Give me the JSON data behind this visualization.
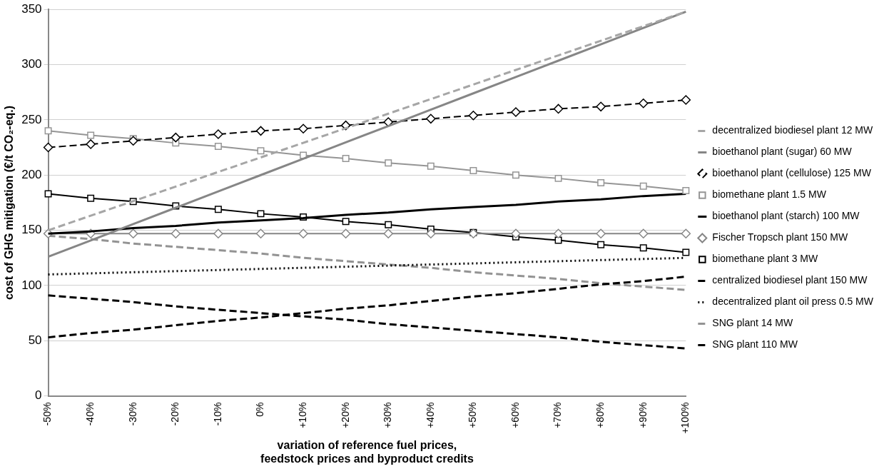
{
  "chart_data": {
    "type": "line",
    "xlabel": "variation of reference fuel prices,\nfeedstock prices and byproduct credits",
    "ylabel": "cost of GHG mitigation (€/t CO₂-eq.)",
    "categories": [
      "-50%",
      "-40%",
      "-30%",
      "-20%",
      "-10%",
      "0%",
      "+10%",
      "+20%",
      "+30%",
      "+40%",
      "+50%",
      "+60%",
      "+70%",
      "+80%",
      "+90%",
      "+100%"
    ],
    "ylim": [
      0,
      350
    ],
    "yticks": [
      0,
      50,
      100,
      150,
      200,
      250,
      300,
      350
    ],
    "grid": "y",
    "legend": "right",
    "series": [
      {
        "name": "decentralized biodiesel plant 12 MW",
        "color": "#a6a6a6",
        "line_style": "dashed",
        "marker": "none",
        "values": [
          150,
          163.2,
          176.4,
          189.6,
          202.8,
          216,
          229.2,
          242.4,
          255.6,
          268.8,
          282,
          295.2,
          308.4,
          321.6,
          334.8,
          348
        ]
      },
      {
        "name": "bioethanol plant (sugar) 60 MW",
        "color": "#868686",
        "line_style": "solid",
        "marker": "none",
        "values": [
          126,
          140.8,
          155.6,
          170.4,
          185.2,
          200,
          214.8,
          229.6,
          244.4,
          259.2,
          274,
          288.8,
          303.6,
          318.4,
          333.2,
          348
        ]
      },
      {
        "name": "bioethanol plant (cellulose) 125 MW",
        "color": "#000000",
        "line_style": "dashed",
        "marker": "diamond",
        "values": [
          225,
          228,
          231,
          234,
          237,
          240,
          242,
          245,
          248,
          251,
          254,
          257,
          260,
          262,
          265,
          268
        ]
      },
      {
        "name": "biomethane plant 1.5 MW",
        "color": "#959595",
        "line_style": "solid",
        "marker": "square",
        "values": [
          240,
          236,
          233,
          229,
          226,
          222,
          218,
          215,
          211,
          208,
          204,
          200,
          197,
          193,
          190,
          186
        ]
      },
      {
        "name": "bioethanol plant (starch) 100 MW",
        "color": "#000000",
        "line_style": "solid",
        "marker": "none",
        "values": [
          147,
          149,
          152,
          154,
          157,
          159,
          161,
          164,
          166,
          169,
          171,
          173,
          176,
          178,
          181,
          183
        ]
      },
      {
        "name": "Fischer Tropsch plant 150 MW",
        "color": "#868686",
        "line_style": "solid",
        "marker": "diamond",
        "values": [
          147,
          147,
          147,
          147,
          147,
          147,
          147,
          147,
          147,
          147,
          147,
          147,
          147,
          147,
          147,
          147
        ]
      },
      {
        "name": "biomethane plant 3 MW",
        "color": "#000000",
        "line_style": "solid",
        "marker": "square",
        "values": [
          183,
          179,
          176,
          172,
          169,
          165,
          162,
          158,
          155,
          151,
          148,
          144,
          141,
          137,
          134,
          130
        ]
      },
      {
        "name": "centralized biodiesel plant 150 MW",
        "color": "#000000",
        "line_style": "dashed",
        "marker": "none",
        "values": [
          53,
          57,
          60,
          64,
          68,
          71,
          75,
          79,
          82,
          86,
          90,
          93,
          97,
          101,
          104,
          108
        ]
      },
      {
        "name": "decentralized plant oil press 0.5 MW",
        "color": "#000000",
        "line_style": "dotted",
        "marker": "none",
        "values": [
          110,
          111,
          112,
          113,
          114,
          115,
          116,
          117,
          118,
          119,
          120,
          121,
          122,
          123,
          124,
          125
        ]
      },
      {
        "name": "SNG plant 14 MW",
        "color": "#939393",
        "line_style": "dashed",
        "marker": "none",
        "values": [
          145,
          142,
          138,
          135,
          132,
          129,
          125,
          122,
          119,
          116,
          112,
          109,
          106,
          102,
          99,
          96
        ]
      },
      {
        "name": "SNG plant 110 MW",
        "color": "#000000",
        "line_style": "dashed",
        "marker": "none",
        "values": [
          91,
          88,
          85,
          81,
          78,
          75,
          72,
          69,
          65,
          62,
          59,
          56,
          53,
          49,
          46,
          43
        ]
      }
    ]
  }
}
